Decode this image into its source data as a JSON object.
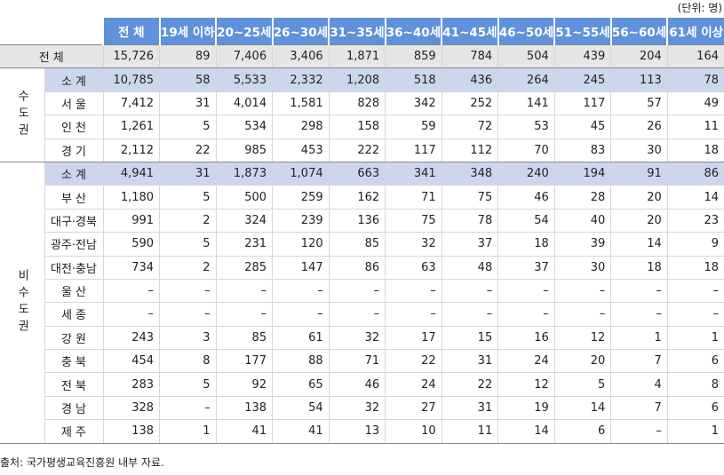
{
  "unit": "(단위: 명)",
  "columns": [
    "전 체",
    "19세 이하",
    "20~25세",
    "26~30세",
    "31~35세",
    "36~40세",
    "41~45세",
    "46~50세",
    "51~55세",
    "56~60세",
    "61세 이상"
  ],
  "total": {
    "label": "전 체",
    "values": [
      "15,726",
      "89",
      "7,406",
      "3,406",
      "1,871",
      "859",
      "784",
      "504",
      "439",
      "204",
      "164"
    ]
  },
  "groups": [
    {
      "label": "수도권",
      "rows": [
        {
          "label": "소 계",
          "subtotal": true,
          "values": [
            "10,785",
            "58",
            "5,533",
            "2,332",
            "1,208",
            "518",
            "436",
            "264",
            "245",
            "113",
            "78"
          ]
        },
        {
          "label": "서 울",
          "values": [
            "7,412",
            "31",
            "4,014",
            "1,581",
            "828",
            "342",
            "252",
            "141",
            "117",
            "57",
            "49"
          ]
        },
        {
          "label": "인 천",
          "values": [
            "1,261",
            "5",
            "534",
            "298",
            "158",
            "59",
            "72",
            "53",
            "45",
            "26",
            "11"
          ]
        },
        {
          "label": "경 기",
          "values": [
            "2,112",
            "22",
            "985",
            "453",
            "222",
            "117",
            "112",
            "70",
            "83",
            "30",
            "18"
          ]
        }
      ]
    },
    {
      "label": "비수도권",
      "rows": [
        {
          "label": "소 계",
          "subtotal": true,
          "values": [
            "4,941",
            "31",
            "1,873",
            "1,074",
            "663",
            "341",
            "348",
            "240",
            "194",
            "91",
            "86"
          ]
        },
        {
          "label": "부 산",
          "values": [
            "1,180",
            "5",
            "500",
            "259",
            "162",
            "71",
            "75",
            "46",
            "28",
            "20",
            "14"
          ]
        },
        {
          "label": "대구·경북",
          "values": [
            "991",
            "2",
            "324",
            "239",
            "136",
            "75",
            "78",
            "54",
            "40",
            "20",
            "23"
          ]
        },
        {
          "label": "광주·전남",
          "values": [
            "590",
            "5",
            "231",
            "120",
            "85",
            "32",
            "37",
            "18",
            "39",
            "14",
            "9"
          ]
        },
        {
          "label": "대전·충남",
          "values": [
            "734",
            "2",
            "285",
            "147",
            "86",
            "63",
            "48",
            "37",
            "30",
            "18",
            "18"
          ]
        },
        {
          "label": "울 산",
          "values": [
            "–",
            "–",
            "–",
            "–",
            "–",
            "–",
            "–",
            "–",
            "–",
            "–",
            "–"
          ]
        },
        {
          "label": "세 종",
          "values": [
            "–",
            "–",
            "–",
            "–",
            "–",
            "–",
            "–",
            "–",
            "–",
            "–",
            "–"
          ]
        },
        {
          "label": "강 원",
          "values": [
            "243",
            "3",
            "85",
            "61",
            "32",
            "17",
            "15",
            "16",
            "12",
            "1",
            "1"
          ]
        },
        {
          "label": "충 북",
          "values": [
            "454",
            "8",
            "177",
            "88",
            "71",
            "22",
            "31",
            "24",
            "20",
            "7",
            "6"
          ]
        },
        {
          "label": "전 북",
          "values": [
            "283",
            "5",
            "92",
            "65",
            "46",
            "24",
            "22",
            "12",
            "5",
            "4",
            "8"
          ]
        },
        {
          "label": "경 남",
          "values": [
            "328",
            "–",
            "138",
            "54",
            "32",
            "27",
            "31",
            "19",
            "14",
            "7",
            "6"
          ]
        },
        {
          "label": "제 주",
          "values": [
            "138",
            "1",
            "41",
            "41",
            "13",
            "10",
            "11",
            "14",
            "6",
            "–",
            "1"
          ]
        }
      ]
    }
  ],
  "source": "출처: 국가평생교육진흥원 내부 자료."
}
